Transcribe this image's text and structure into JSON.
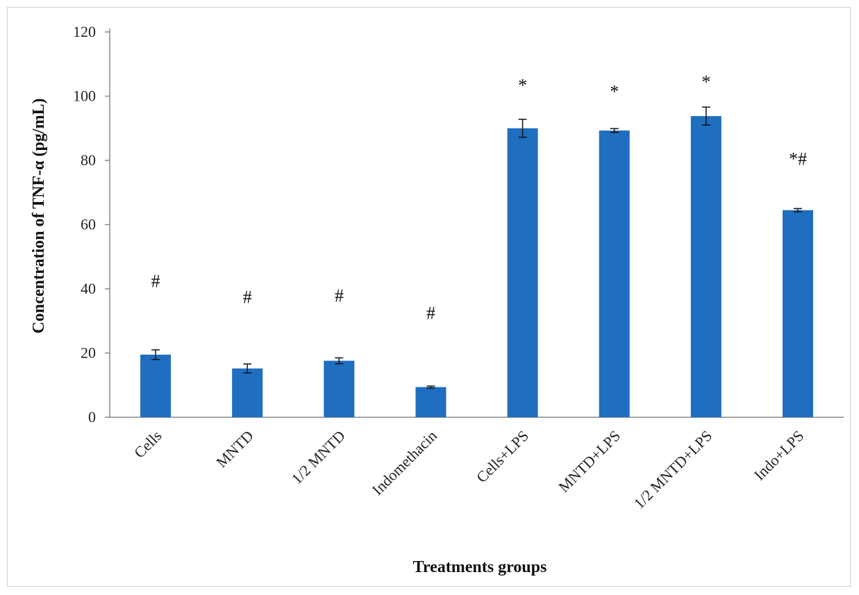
{
  "chart_data": {
    "type": "bar",
    "categories": [
      "Cells",
      "MNTD",
      "1/2 MNTD",
      "Indomethacin",
      "Cells+LPS",
      "MNTD+LPS",
      "1/2 MNTD+LPS",
      "Indo+LPS"
    ],
    "values": [
      19.5,
      15.2,
      17.6,
      9.4,
      90.0,
      89.3,
      93.8,
      64.5
    ],
    "errors": [
      1.5,
      1.4,
      0.9,
      0.3,
      2.8,
      0.6,
      2.8,
      0.5
    ],
    "annotations": [
      "#",
      "#",
      "#",
      "#",
      "*",
      "*",
      "*",
      "*#"
    ],
    "annotation_values": [
      42.5,
      37.5,
      38.0,
      32.5,
      103.5,
      101.5,
      104.5,
      80.5
    ],
    "xlabel": "Treatments  groups",
    "ylabel": "Concentration  of TNF-α  (pg/mL)",
    "ylim": [
      0,
      120
    ],
    "yticks": [
      0,
      20,
      40,
      60,
      80,
      100,
      120
    ],
    "bar_color": "#1f6ebf",
    "grid": false
  }
}
